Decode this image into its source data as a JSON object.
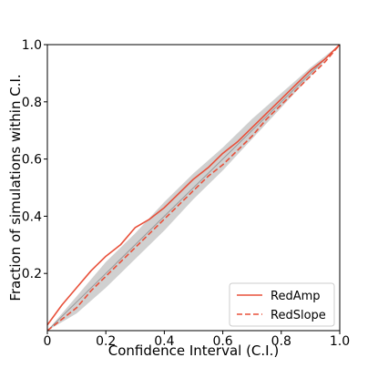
{
  "chart_data": {
    "type": "line",
    "xlabel": "Confidence Interval (C.I.)",
    "ylabel": "Fraction of simulations within C.I.",
    "xlim": [
      0,
      1
    ],
    "ylim": [
      0,
      1
    ],
    "xticks": [
      "0",
      "0.2",
      "0.4",
      "0.6",
      "0.8",
      "1.0"
    ],
    "yticks": [
      "0.2",
      "0.4",
      "0.6",
      "0.8",
      "1.0"
    ],
    "xtick_values": [
      0,
      0.2,
      0.4,
      0.6,
      0.8,
      1.0
    ],
    "ytick_values": [
      0.2,
      0.4,
      0.6,
      0.8,
      1.0
    ],
    "grid": false,
    "legend_position": "bottom-right",
    "band": {
      "x": [
        0,
        0.1,
        0.2,
        0.3,
        0.4,
        0.5,
        0.6,
        0.7,
        0.8,
        0.9,
        1.0
      ],
      "lower": [
        0.0,
        0.06,
        0.15,
        0.25,
        0.35,
        0.46,
        0.56,
        0.67,
        0.78,
        0.89,
        1.0
      ],
      "upper": [
        0.0,
        0.12,
        0.24,
        0.34,
        0.45,
        0.55,
        0.64,
        0.74,
        0.83,
        0.92,
        1.0
      ],
      "color": "#c8c8c8"
    },
    "series": [
      {
        "name": "RedAmp",
        "style": "solid",
        "color": "#e8503a",
        "x": [
          0,
          0.05,
          0.1,
          0.15,
          0.2,
          0.25,
          0.3,
          0.35,
          0.4,
          0.45,
          0.5,
          0.55,
          0.6,
          0.65,
          0.7,
          0.75,
          0.8,
          0.85,
          0.9,
          0.95,
          1.0
        ],
        "y": [
          0.02,
          0.09,
          0.15,
          0.21,
          0.26,
          0.3,
          0.36,
          0.39,
          0.43,
          0.48,
          0.53,
          0.57,
          0.62,
          0.66,
          0.71,
          0.76,
          0.81,
          0.86,
          0.91,
          0.95,
          1.0
        ]
      },
      {
        "name": "RedSlope",
        "style": "dashed",
        "color": "#e8503a",
        "x": [
          0,
          0.05,
          0.1,
          0.15,
          0.2,
          0.25,
          0.3,
          0.35,
          0.4,
          0.45,
          0.5,
          0.55,
          0.6,
          0.65,
          0.7,
          0.75,
          0.8,
          0.85,
          0.9,
          0.95,
          1.0
        ],
        "y": [
          0.0,
          0.04,
          0.08,
          0.14,
          0.19,
          0.24,
          0.29,
          0.34,
          0.39,
          0.44,
          0.49,
          0.54,
          0.58,
          0.63,
          0.68,
          0.74,
          0.79,
          0.84,
          0.89,
          0.94,
          1.0
        ]
      }
    ]
  }
}
